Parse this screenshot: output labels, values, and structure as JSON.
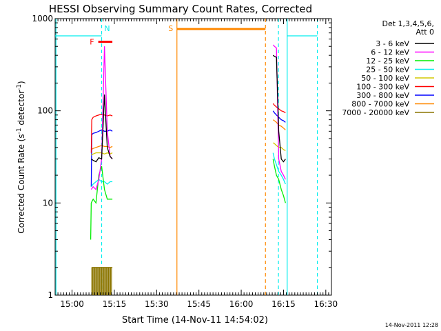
{
  "chart_data": {
    "type": "line",
    "title": "HESSI Observing Summary Count Rates, Corrected",
    "xlabel": "Start Time (14-Nov-11 14:54:02)",
    "ylabel_parts": [
      "Corrected Count Rate (s",
      "-1",
      " detector",
      "-1",
      ")"
    ],
    "x_unit": "minutes after 14:54:02",
    "xlim": [
      0,
      98
    ],
    "ylim": [
      1,
      1000
    ],
    "yscale": "log",
    "x_ticks": [
      {
        "t": 6,
        "label": "15:00"
      },
      {
        "t": 21,
        "label": "15:15"
      },
      {
        "t": 36,
        "label": "15:30"
      },
      {
        "t": 51,
        "label": "15:45"
      },
      {
        "t": 66,
        "label": "16:00"
      },
      {
        "t": 81,
        "label": "16:15"
      },
      {
        "t": 96,
        "label": "16:30"
      }
    ],
    "y_ticks": [
      {
        "v": 1,
        "label": "1"
      },
      {
        "v": 10,
        "label": "10"
      },
      {
        "v": 100,
        "label": "100"
      },
      {
        "v": 1000,
        "label": "1000"
      }
    ],
    "legend": {
      "header": [
        "Det 1,3,4,5,6,",
        "Att 0"
      ],
      "placement": "right",
      "entries": [
        {
          "label": "3 - 6 keV",
          "color": "#000000"
        },
        {
          "label": "6 - 12 keV",
          "color": "#ff00ff"
        },
        {
          "label": "12 - 25 keV",
          "color": "#00ee00"
        },
        {
          "label": "25 - 50 keV",
          "color": "#00eeee"
        },
        {
          "label": "50 - 100 keV",
          "color": "#d4c800"
        },
        {
          "label": "100 - 300 keV",
          "color": "#ff0000"
        },
        {
          "label": "300 - 800 keV",
          "color": "#0000ff"
        },
        {
          "label": "800 - 7000 keV",
          "color": "#ff8800"
        },
        {
          "label": "7000 - 20000 keV",
          "color": "#8b7500"
        }
      ]
    },
    "series": [
      {
        "name": "3 - 6 keV",
        "color": "#000000",
        "segments": [
          {
            "x": [
              12.8,
              13.5,
              14.5,
              15.5,
              16.5,
              17.5,
              18.5,
              19.5,
              20.3
            ],
            "y": [
              30,
              29,
              28,
              31,
              30,
              150,
              40,
              32,
              30
            ]
          },
          {
            "x": [
              77.3,
              77.8,
              78.5,
              79.3,
              80.2,
              81.0,
              81.7
            ],
            "y": [
              400,
              390,
              380,
              60,
              30,
              28,
              30
            ]
          }
        ]
      },
      {
        "name": "6 - 12 keV",
        "color": "#ff00ff",
        "segments": [
          {
            "x": [
              12.8,
              13.5,
              14.5,
              15.5,
              16.5,
              17.5,
              18.5,
              19.5,
              20.3
            ],
            "y": [
              14,
              15,
              14,
              18,
              30,
              500,
              60,
              32,
              30
            ]
          },
          {
            "x": [
              77.3,
              77.8,
              78.5,
              79.3,
              80.2,
              81.0,
              81.7
            ],
            "y": [
              520,
              500,
              480,
              30,
              22,
              20,
              18
            ]
          }
        ]
      },
      {
        "name": "12 - 25 keV",
        "color": "#00ee00",
        "segments": [
          {
            "x": [
              12.6,
              12.8,
              13.5,
              14.5,
              15.5,
              16.5,
              17.5,
              18.5,
              19.5,
              20.3
            ],
            "y": [
              4,
              10,
              11,
              10,
              20,
              25,
              14,
              11,
              11,
              11
            ]
          },
          {
            "x": [
              77.3,
              77.8,
              78.5,
              79.3,
              80.2,
              81.0,
              81.7
            ],
            "y": [
              30,
              25,
              20,
              18,
              14,
              12,
              10
            ]
          }
        ]
      },
      {
        "name": "25 - 50 keV",
        "color": "#00eeee",
        "segments": [
          {
            "x": [
              0,
              16.5
            ],
            "y": [
              650,
              650
            ]
          },
          {
            "x": [
              12.8,
              13.5,
              14.5,
              15.5,
              16.5,
              17.5,
              18.5,
              19.5,
              20.3
            ],
            "y": [
              15,
              16,
              17,
              18,
              17,
              17,
              16,
              17,
              17
            ]
          },
          {
            "x": [
              77.3,
              77.8,
              78.5,
              79.3,
              80.2,
              81.0,
              81.7
            ],
            "y": [
              35,
              30,
              26,
              22,
              20,
              18,
              16
            ]
          },
          {
            "x": [
              82.3,
              93.0
            ],
            "y": [
              650,
              650
            ]
          }
        ]
      },
      {
        "name": "50 - 100 keV",
        "color": "#d4c800",
        "segments": [
          {
            "x": [
              12.8,
              13.5,
              14.5,
              15.5,
              16.5,
              17.5,
              18.5,
              19.5,
              20.3
            ],
            "y": [
              33,
              34,
              35,
              35,
              35,
              34,
              35,
              34,
              35
            ]
          },
          {
            "x": [
              77.3,
              77.8,
              78.5,
              79.3,
              80.2,
              81.0,
              81.7
            ],
            "y": [
              45,
              44,
              42,
              40,
              40,
              38,
              37
            ]
          }
        ]
      },
      {
        "name": "100 - 300 keV",
        "color": "#ff0000",
        "segments": [
          {
            "x": [
              12.8,
              13.0,
              13.5,
              14.5,
              15.5,
              16.5,
              17.5,
              18.5,
              19.5,
              20.3
            ],
            "y": [
              35,
              80,
              85,
              88,
              90,
              92,
              90,
              88,
              90,
              88
            ]
          },
          {
            "x": [
              77.3,
              77.8,
              78.5,
              79.3,
              80.2,
              81.0,
              81.7
            ],
            "y": [
              120,
              115,
              110,
              105,
              100,
              98,
              95
            ]
          }
        ]
      },
      {
        "name": "300 - 800 keV",
        "color": "#0000ff",
        "segments": [
          {
            "x": [
              12.8,
              13.0,
              13.5,
              14.5,
              15.5,
              16.5,
              17.5,
              18.5,
              19.5,
              20.3
            ],
            "y": [
              15,
              55,
              57,
              58,
              60,
              62,
              60,
              60,
              62,
              60
            ]
          },
          {
            "x": [
              77.3,
              77.8,
              78.5,
              79.3,
              80.2,
              81.0,
              81.7
            ],
            "y": [
              100,
              95,
              90,
              85,
              80,
              78,
              75
            ]
          }
        ]
      },
      {
        "name": "800 - 7000 keV",
        "color": "#ff8800",
        "segments": [
          {
            "x": [
              12.8,
              13.5,
              14.5,
              15.5,
              16.5,
              17.5,
              18.5,
              19.5,
              20.3
            ],
            "y": [
              38,
              39,
              40,
              41,
              42,
              41,
              41,
              40,
              41
            ]
          },
          {
            "x": [
              77.3,
              77.8,
              78.5,
              79.3,
              80.2,
              81.0,
              81.7
            ],
            "y": [
              80,
              78,
              75,
              70,
              68,
              65,
              62
            ]
          }
        ]
      },
      {
        "name": "7000 - 20000 keV",
        "color": "#8b7500",
        "segments": [
          {
            "x": [
              13.0,
              20.3
            ],
            "y": [
              2,
              2
            ]
          }
        ]
      }
    ],
    "intervals": [
      {
        "label": "F",
        "color": "#ff0000",
        "x": [
          15.3,
          20.3
        ],
        "y": 560
      },
      {
        "label": "S",
        "color": "#ff8800",
        "x": [
          43.2,
          74.6
        ],
        "y": 770
      }
    ],
    "markers": [
      {
        "label": "N",
        "color": "#00eeee",
        "x": 16.5
      },
      {
        "label": "S",
        "color": "#ff8800",
        "x": 43.2
      }
    ],
    "vertical_lines": [
      {
        "x": 0.3,
        "color": "#00eeee",
        "style": "solid"
      },
      {
        "x": 16.5,
        "color": "#00eeee",
        "style": "dashed"
      },
      {
        "x": 43.2,
        "color": "#ff8800",
        "style": "solid"
      },
      {
        "x": 74.6,
        "color": "#ff8800",
        "style": "dashed"
      },
      {
        "x": 79.2,
        "color": "#00eeee",
        "style": "dashed"
      },
      {
        "x": 82.3,
        "color": "#00eeee",
        "style": "solid"
      },
      {
        "x": 93.0,
        "color": "#00eeee",
        "style": "dashed"
      }
    ],
    "timestamp": "14-Nov-2011 12:28"
  }
}
